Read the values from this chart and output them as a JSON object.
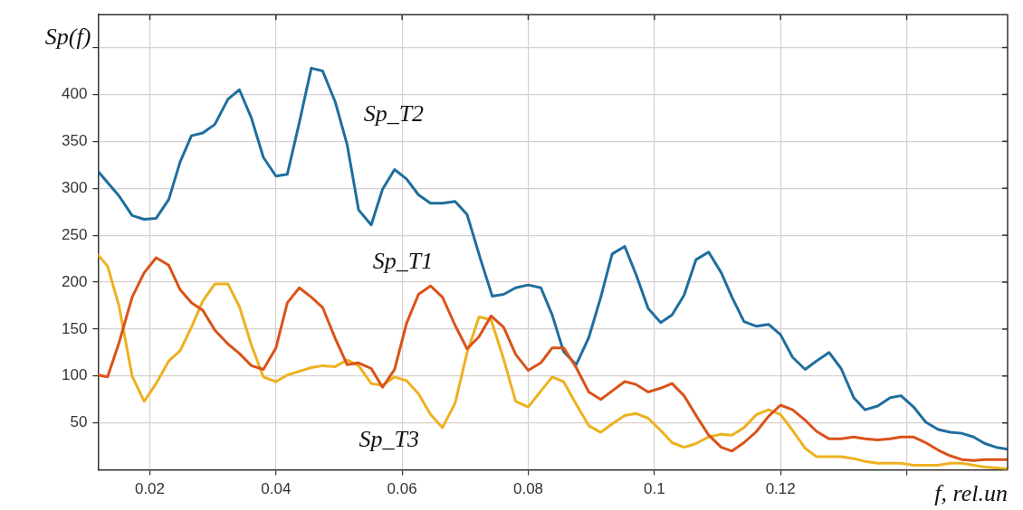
{
  "chart_data": {
    "type": "line",
    "xlabel": "f, rel.un",
    "ylabel": "Sp(f)",
    "xlim": [
      0.0118,
      0.156
    ],
    "ylim": [
      0,
      485
    ],
    "xticks": [
      0.02,
      0.04,
      0.06,
      0.08,
      0.1,
      0.12,
      {
        "value": 0.14,
        "label": null
      }
    ],
    "yticks": [
      50,
      100,
      150,
      200,
      250,
      300,
      350,
      400,
      {
        "value": 450,
        "label": null
      }
    ],
    "grid": true,
    "legend": false,
    "marker": "none",
    "line_style": "solid",
    "series": [
      {
        "name": "Sp_T1",
        "color": "#d95319",
        "x": [
          0.0118,
          0.0133,
          0.0151,
          0.0172,
          0.0191,
          0.021,
          0.023,
          0.0248,
          0.0266,
          0.0284,
          0.0303,
          0.0324,
          0.0342,
          0.0361,
          0.038,
          0.04,
          0.0418,
          0.0437,
          0.0456,
          0.0474,
          0.0494,
          0.0513,
          0.0531,
          0.0551,
          0.0569,
          0.0588,
          0.0607,
          0.0626,
          0.0645,
          0.0664,
          0.0684,
          0.0703,
          0.0722,
          0.0741,
          0.0761,
          0.078,
          0.08,
          0.082,
          0.0838,
          0.0856,
          0.0876,
          0.0896,
          0.0915,
          0.0933,
          0.0953,
          0.0971,
          0.099,
          0.101,
          0.1028,
          0.1047,
          0.1066,
          0.1086,
          0.1106,
          0.1123,
          0.1142,
          0.1162,
          0.1181,
          0.12,
          0.1219,
          0.1239,
          0.1257,
          0.1277,
          0.1296,
          0.1316,
          0.1334,
          0.1354,
          0.1374,
          0.1391,
          0.1411,
          0.143,
          0.145,
          0.1469,
          0.1487,
          0.1506,
          0.1524,
          0.156
        ],
        "values": [
          101,
          99,
          135,
          184,
          210,
          226,
          218,
          192,
          178,
          170,
          149,
          134,
          124,
          111,
          107,
          130,
          178,
          194,
          184,
          173,
          140,
          112,
          114,
          108,
          88,
          107,
          156,
          187,
          196,
          184,
          154,
          129,
          142,
          164,
          152,
          123,
          106,
          114,
          130,
          130,
          109,
          83,
          75,
          84,
          94,
          91,
          83,
          87,
          92,
          79,
          58,
          37,
          24,
          20,
          29,
          41,
          57,
          69,
          64,
          53,
          41,
          33,
          33,
          35,
          33,
          32,
          33,
          35,
          35,
          29,
          21,
          15,
          11,
          10,
          11,
          11
        ]
      },
      {
        "name": "Sp_T2",
        "color": "#1f6e9e",
        "x": [
          0.0118,
          0.0151,
          0.0172,
          0.0191,
          0.021,
          0.023,
          0.0248,
          0.0266,
          0.0284,
          0.0303,
          0.0324,
          0.0342,
          0.0361,
          0.038,
          0.04,
          0.0418,
          0.0437,
          0.0456,
          0.0474,
          0.0494,
          0.0513,
          0.0531,
          0.0551,
          0.0569,
          0.0588,
          0.0607,
          0.0626,
          0.0645,
          0.0664,
          0.0684,
          0.0703,
          0.0725,
          0.0743,
          0.0761,
          0.078,
          0.08,
          0.082,
          0.0838,
          0.0856,
          0.0876,
          0.0896,
          0.0915,
          0.0933,
          0.0953,
          0.0971,
          0.099,
          0.101,
          0.1028,
          0.1047,
          0.1066,
          0.1086,
          0.1106,
          0.1123,
          0.1142,
          0.1162,
          0.1181,
          0.12,
          0.1219,
          0.1239,
          0.1257,
          0.1277,
          0.1296,
          0.1316,
          0.1334,
          0.1354,
          0.1374,
          0.1391,
          0.1411,
          0.143,
          0.145,
          0.1469,
          0.1487,
          0.1506,
          0.1524,
          0.1542,
          0.156
        ],
        "values": [
          318,
          292,
          271,
          267,
          268,
          288,
          328,
          356,
          359,
          368,
          395,
          405,
          375,
          333,
          313,
          315,
          370,
          428,
          425,
          392,
          346,
          277,
          261,
          299,
          320,
          310,
          293,
          284,
          284,
          286,
          272,
          223,
          185,
          187,
          194,
          197,
          194,
          165,
          126,
          112,
          141,
          184,
          230,
          238,
          208,
          172,
          157,
          165,
          186,
          224,
          232,
          210,
          184,
          158,
          153,
          155,
          144,
          120,
          107,
          116,
          125,
          108,
          77,
          64,
          68,
          77,
          79,
          67,
          51,
          43,
          40,
          39,
          35,
          28,
          24,
          22
        ]
      },
      {
        "name": "Sp_T3",
        "color": "#edb120",
        "x": [
          0.0118,
          0.0133,
          0.0151,
          0.0172,
          0.0191,
          0.021,
          0.023,
          0.0248,
          0.0266,
          0.0284,
          0.0303,
          0.0324,
          0.0342,
          0.0361,
          0.038,
          0.04,
          0.0418,
          0.0437,
          0.0456,
          0.0474,
          0.0494,
          0.0513,
          0.0531,
          0.0551,
          0.0569,
          0.0588,
          0.0607,
          0.0626,
          0.0645,
          0.0664,
          0.0684,
          0.0703,
          0.0722,
          0.0741,
          0.0761,
          0.078,
          0.08,
          0.082,
          0.0838,
          0.0856,
          0.0876,
          0.0896,
          0.0915,
          0.0933,
          0.0953,
          0.0971,
          0.099,
          0.101,
          0.1028,
          0.1047,
          0.1066,
          0.1086,
          0.1106,
          0.1123,
          0.1142,
          0.1162,
          0.1181,
          0.12,
          0.1219,
          0.1239,
          0.1257,
          0.1277,
          0.1296,
          0.1316,
          0.1334,
          0.1354,
          0.1374,
          0.1391,
          0.1411,
          0.143,
          0.145,
          0.1469,
          0.1487,
          0.1506,
          0.1524,
          0.156
        ],
        "values": [
          229,
          217,
          175,
          100,
          73,
          92,
          116,
          127,
          152,
          180,
          198,
          198,
          174,
          133,
          99,
          94,
          101,
          105,
          109,
          111,
          110,
          117,
          111,
          92,
          90,
          99,
          95,
          81,
          59,
          45,
          71,
          125,
          163,
          160,
          118,
          73,
          67,
          84,
          99,
          94,
          70,
          47,
          40,
          49,
          58,
          60,
          55,
          42,
          29,
          24,
          28,
          35,
          38,
          37,
          45,
          59,
          64,
          59,
          42,
          23,
          14,
          14,
          14,
          12,
          9,
          7,
          7,
          7,
          5,
          5,
          5,
          7,
          7,
          5,
          3,
          1
        ]
      }
    ]
  }
}
